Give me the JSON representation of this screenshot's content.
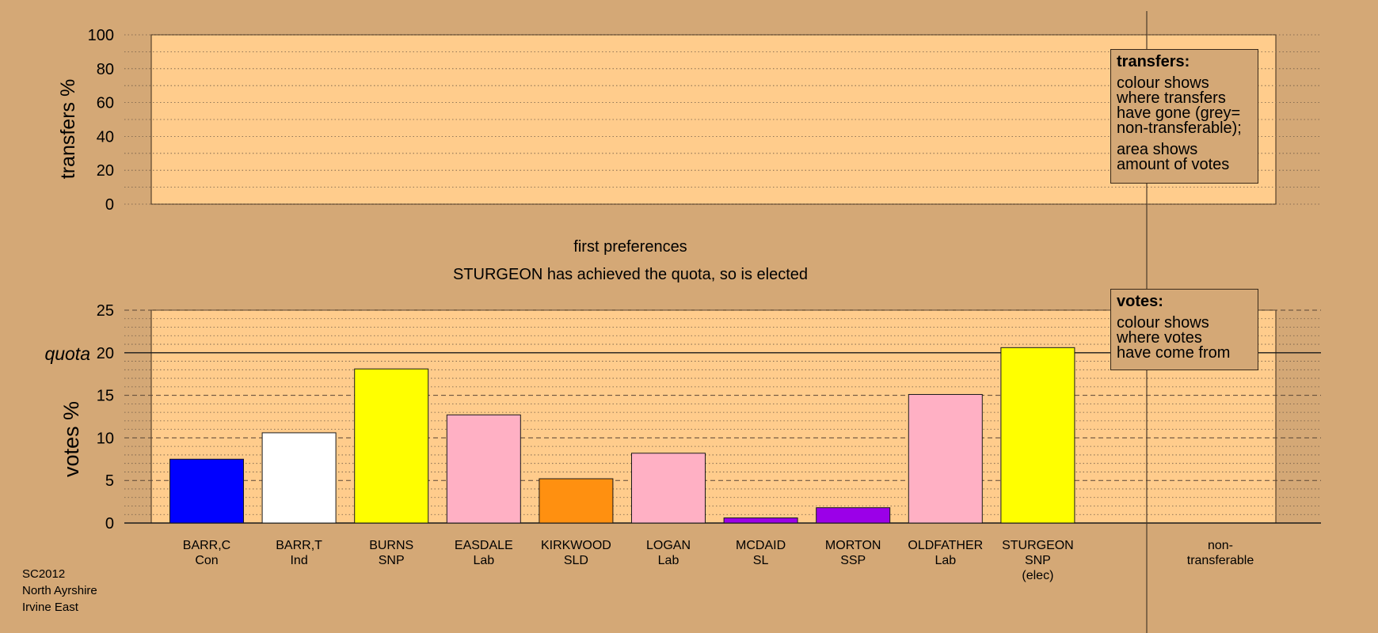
{
  "chart_data": [
    {
      "type": "bar",
      "ylabel": "transfers %",
      "ylim": [
        0,
        100
      ],
      "yticks": [
        "0",
        "20",
        "40",
        "60",
        "80",
        "100"
      ],
      "categories": [],
      "values": []
    },
    {
      "type": "bar",
      "title": "first preferences",
      "subtitle": "STURGEON has achieved the quota, so is elected",
      "ylabel": "votes %",
      "ylim": [
        0,
        25
      ],
      "yticks": [
        "0",
        "5",
        "10",
        "15",
        "20",
        "25"
      ],
      "quota": 20,
      "quota_label": "quota",
      "categories": [
        {
          "name": "BARR,C",
          "party": "Con",
          "note": ""
        },
        {
          "name": "BARR,T",
          "party": "Ind",
          "note": ""
        },
        {
          "name": "BURNS",
          "party": "SNP",
          "note": ""
        },
        {
          "name": "EASDALE",
          "party": "Lab",
          "note": ""
        },
        {
          "name": "KIRKWOOD",
          "party": "SLD",
          "note": ""
        },
        {
          "name": "LOGAN",
          "party": "Lab",
          "note": ""
        },
        {
          "name": "MCDAID",
          "party": "SL",
          "note": ""
        },
        {
          "name": "MORTON",
          "party": "SSP",
          "note": ""
        },
        {
          "name": "OLDFATHER",
          "party": "Lab",
          "note": ""
        },
        {
          "name": "STURGEON",
          "party": "SNP",
          "note": "(elec)"
        }
      ],
      "values": [
        7.5,
        10.6,
        18.1,
        12.7,
        5.2,
        8.2,
        0.6,
        1.8,
        15.1,
        20.6
      ],
      "colors": [
        "#0000ff",
        "#ffffff",
        "#ffff00",
        "#ffb0c4",
        "#ff9010",
        "#ffb0c4",
        "#9b00e8",
        "#9b00e8",
        "#ffb0c4",
        "#ffff00"
      ],
      "extra_column": {
        "line1": "non-",
        "line2": "transferable"
      }
    }
  ],
  "legends": {
    "transfers": {
      "title": "transfers:",
      "lines1": [
        "colour shows",
        "where transfers",
        "have gone (grey=",
        "non-transferable);"
      ],
      "lines2": [
        "area shows",
        "amount of votes"
      ]
    },
    "votes": {
      "title": "votes:",
      "lines": [
        "colour shows",
        "where votes",
        "have come from"
      ]
    }
  },
  "footer": {
    "line1": "SC2012",
    "line2": "North Ayrshire",
    "line3": "Irvine East"
  },
  "colors": {
    "background": "#d4a876",
    "plot_fill": "#ffcc8c"
  }
}
